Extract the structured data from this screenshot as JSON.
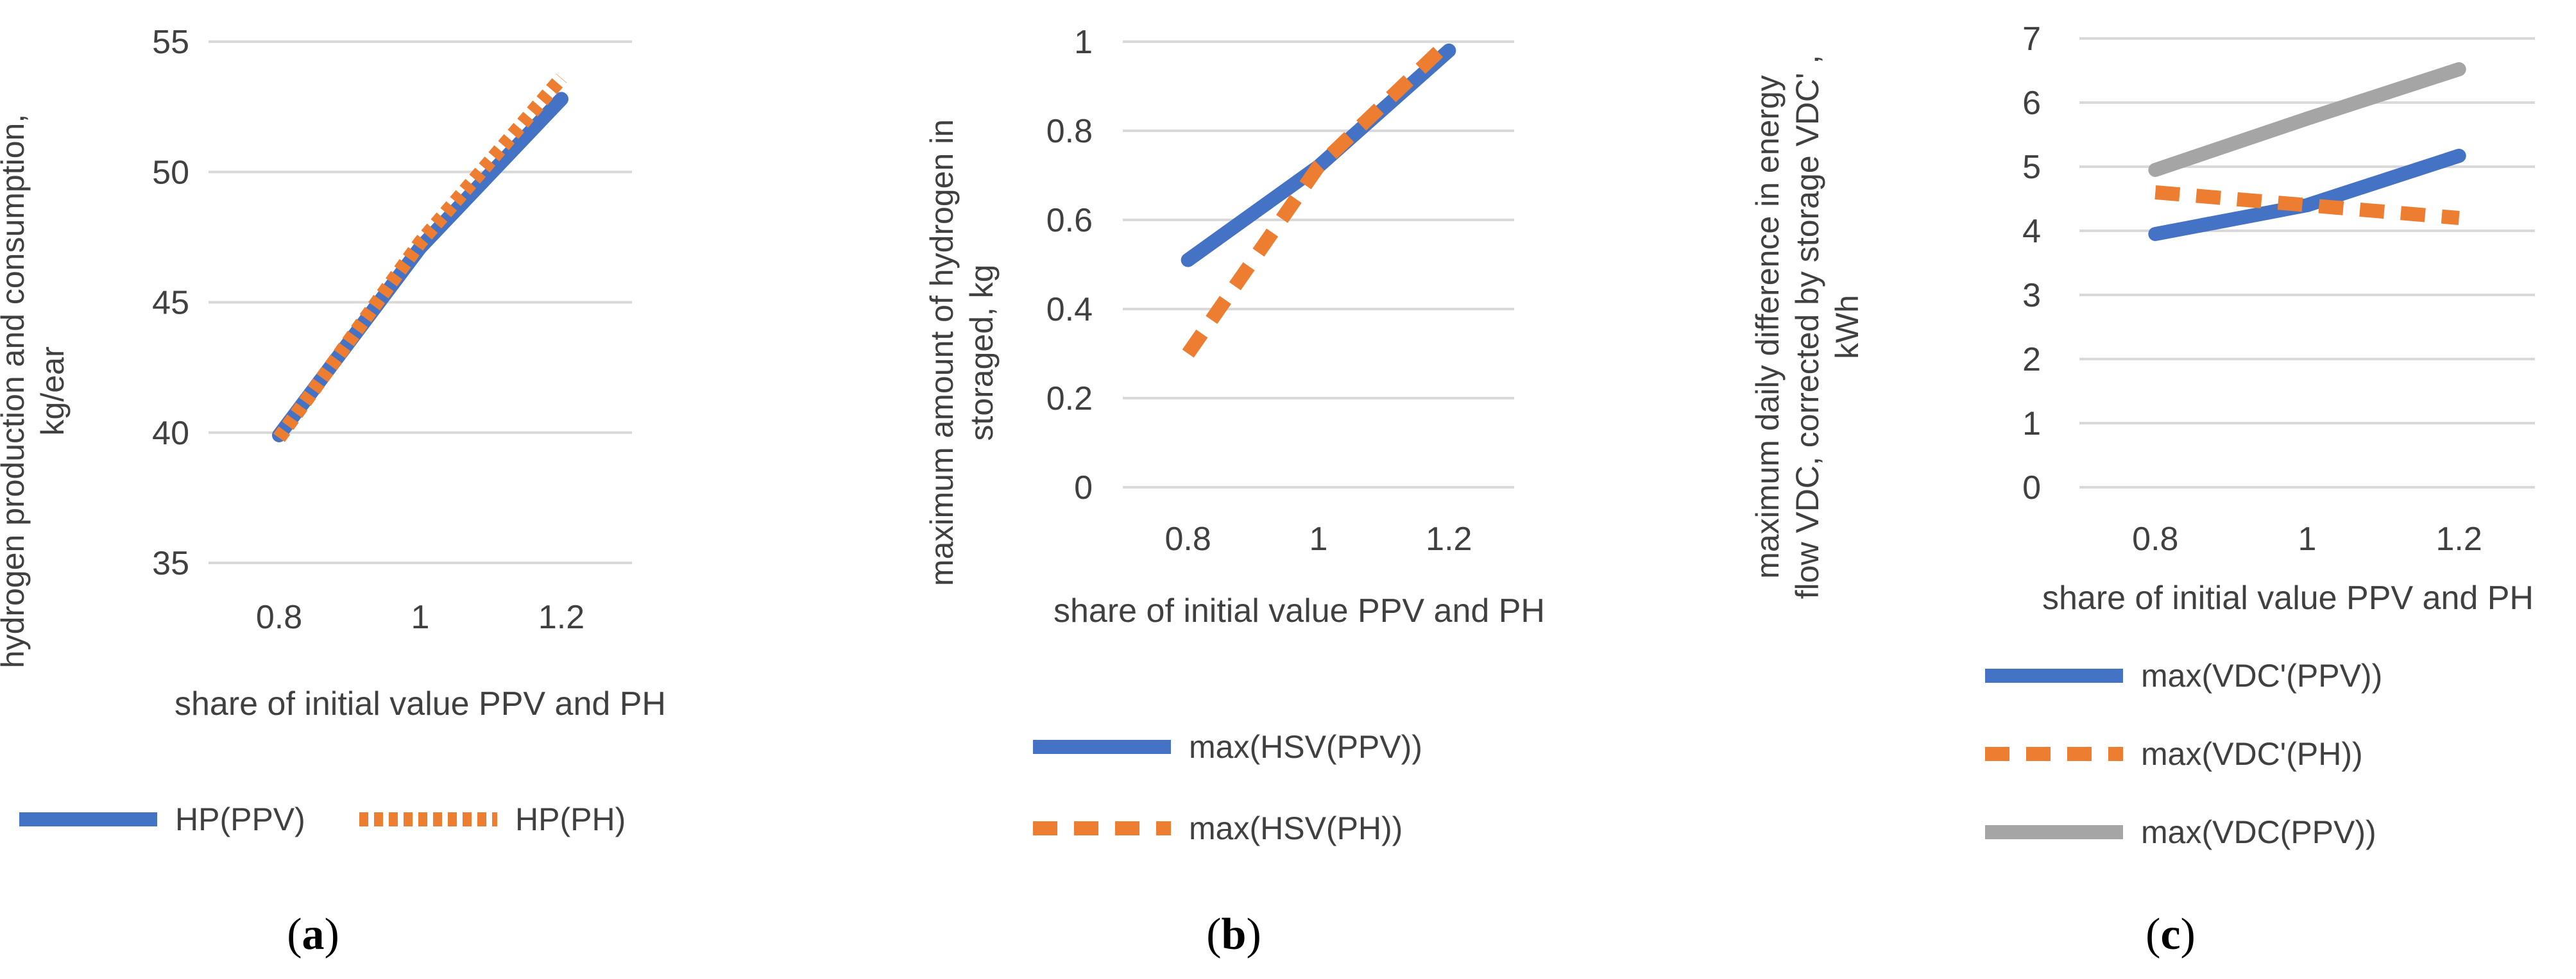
{
  "colors": {
    "series_blue": "#4472C4",
    "series_orange": "#ED7D31",
    "series_gray": "#A5A5A5",
    "gridline": "#D9D9D9",
    "text": "#404040"
  },
  "chart_data": [
    {
      "panel": "a",
      "caption_letter": "a",
      "type": "line",
      "categories": [
        "0.8",
        "1",
        "1.2"
      ],
      "x": [
        0.8,
        1,
        1.2
      ],
      "xlabel": "share of initial value PPV and PH",
      "ylabel_lines": [
        "hydrogen production and consumption,",
        "kg/ear"
      ],
      "ylim": [
        35,
        55
      ],
      "yticks": [
        "35",
        "40",
        "45",
        "50",
        "55"
      ],
      "grid": true,
      "legend": "bottom",
      "series": [
        {
          "name": "HP(PPV)",
          "values": [
            39.9,
            47.1,
            52.8
          ],
          "color": "#4472C4",
          "dash": "solid"
        },
        {
          "name": "HP(PH)",
          "values": [
            39.8,
            47.3,
            53.6
          ],
          "color": "#ED7D31",
          "dash": "dotted"
        }
      ]
    },
    {
      "panel": "b",
      "caption_letter": "b",
      "type": "line",
      "categories": [
        "0.8",
        "1",
        "1.2"
      ],
      "x": [
        0.8,
        1,
        1.2
      ],
      "xlabel": "share of initial value PPV and PH",
      "ylabel_lines": [
        "maximum amount of hydrogen in",
        "storaged, kg"
      ],
      "ylim": [
        0,
        1
      ],
      "yticks": [
        "0",
        "0.2",
        "0.4",
        "0.6",
        "0.8",
        "1"
      ],
      "grid": true,
      "legend": "bottom",
      "series": [
        {
          "name": "max(HSV(PPV))",
          "values": [
            0.51,
            0.72,
            0.98
          ],
          "color": "#4472C4",
          "dash": "solid"
        },
        {
          "name": "max(HSV(PH))",
          "values": [
            0.3,
            0.72,
            1.0
          ],
          "color": "#ED7D31",
          "dash": "dashed"
        }
      ]
    },
    {
      "panel": "c",
      "caption_letter": "c",
      "type": "line",
      "categories": [
        "0.8",
        "1",
        "1.2"
      ],
      "x": [
        0.8,
        1,
        1.2
      ],
      "xlabel": "share of initial value PPV and PH",
      "ylabel_lines": [
        "maximum daily difference in energy",
        "flow VDC, corrected by storage VDC' ,",
        "kWh"
      ],
      "ylim": [
        0,
        7
      ],
      "yticks": [
        "0",
        "1",
        "2",
        "3",
        "4",
        "5",
        "6",
        "7"
      ],
      "grid": true,
      "legend": "bottom",
      "series": [
        {
          "name": "max(VDC'(PPV))",
          "values": [
            3.95,
            4.4,
            5.17
          ],
          "color": "#4472C4",
          "dash": "solid"
        },
        {
          "name": "max(VDC'(PH))",
          "values": [
            4.6,
            4.4,
            4.2
          ],
          "color": "#ED7D31",
          "dash": "dashed"
        },
        {
          "name": "max(VDC(PPV))",
          "values": [
            4.95,
            5.75,
            6.52
          ],
          "color": "#A5A5A5",
          "dash": "solid"
        }
      ]
    }
  ]
}
